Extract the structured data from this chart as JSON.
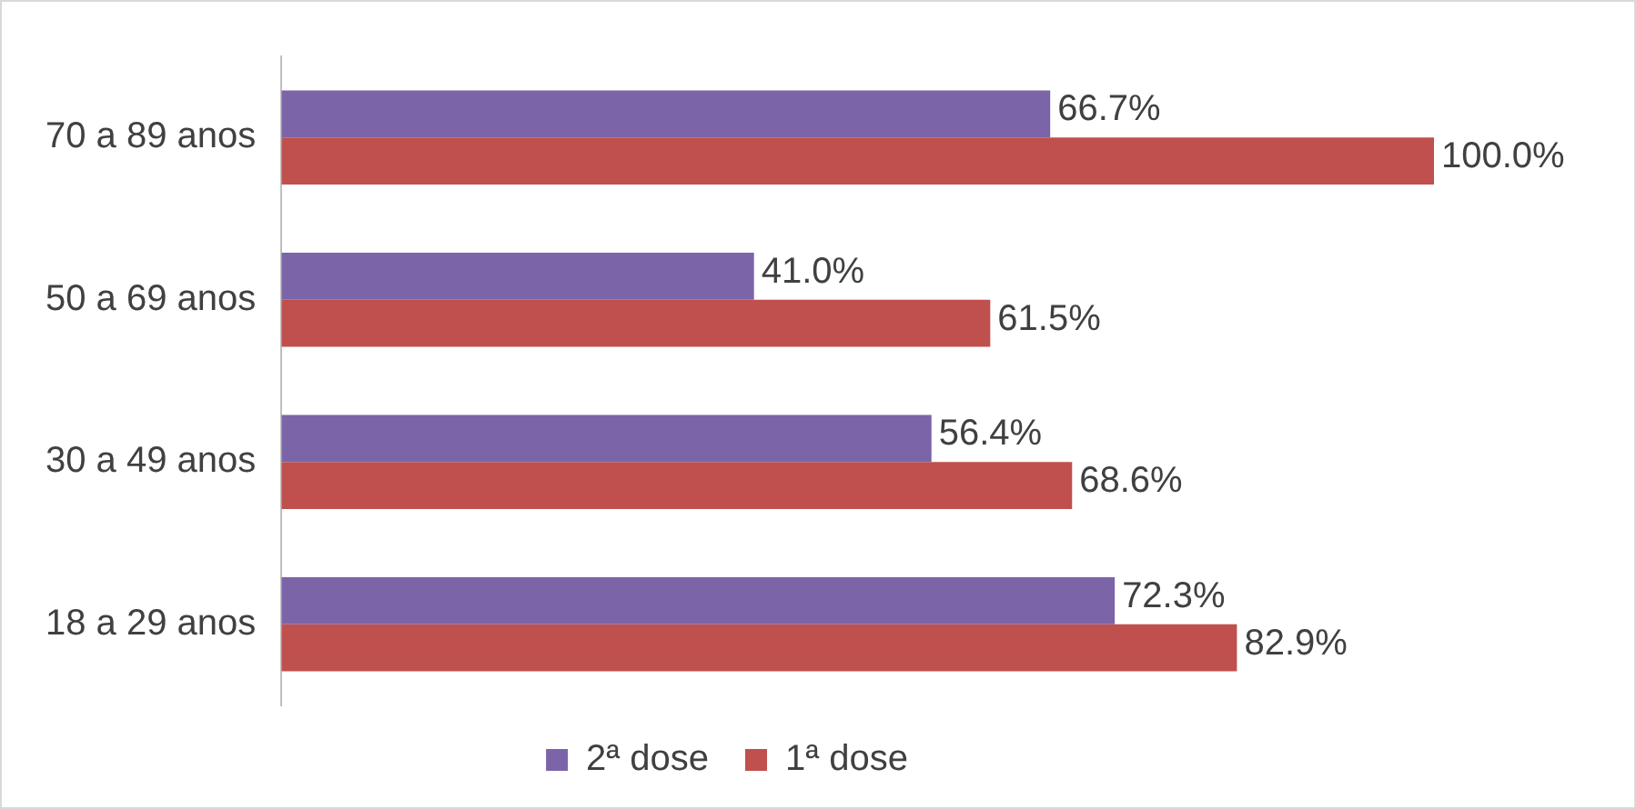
{
  "chart_data": {
    "type": "bar",
    "orientation": "horizontal",
    "categories": [
      "70 a 89 anos",
      "50 a 69 anos",
      "30 a 49 anos",
      "18 a 29 anos"
    ],
    "series": [
      {
        "name": "2ª dose",
        "color": "#7b64a8",
        "values": [
          66.7,
          41.0,
          56.4,
          72.3
        ],
        "value_labels": [
          "66.7%",
          "41.0%",
          "56.4%",
          "72.3%"
        ]
      },
      {
        "name": "1ª dose",
        "color": "#c0504d",
        "values": [
          100.0,
          61.5,
          68.6,
          82.9
        ],
        "value_labels": [
          "100.0%",
          "61.5%",
          "68.6%",
          "82.9%"
        ]
      }
    ],
    "legend": "bottom"
  }
}
